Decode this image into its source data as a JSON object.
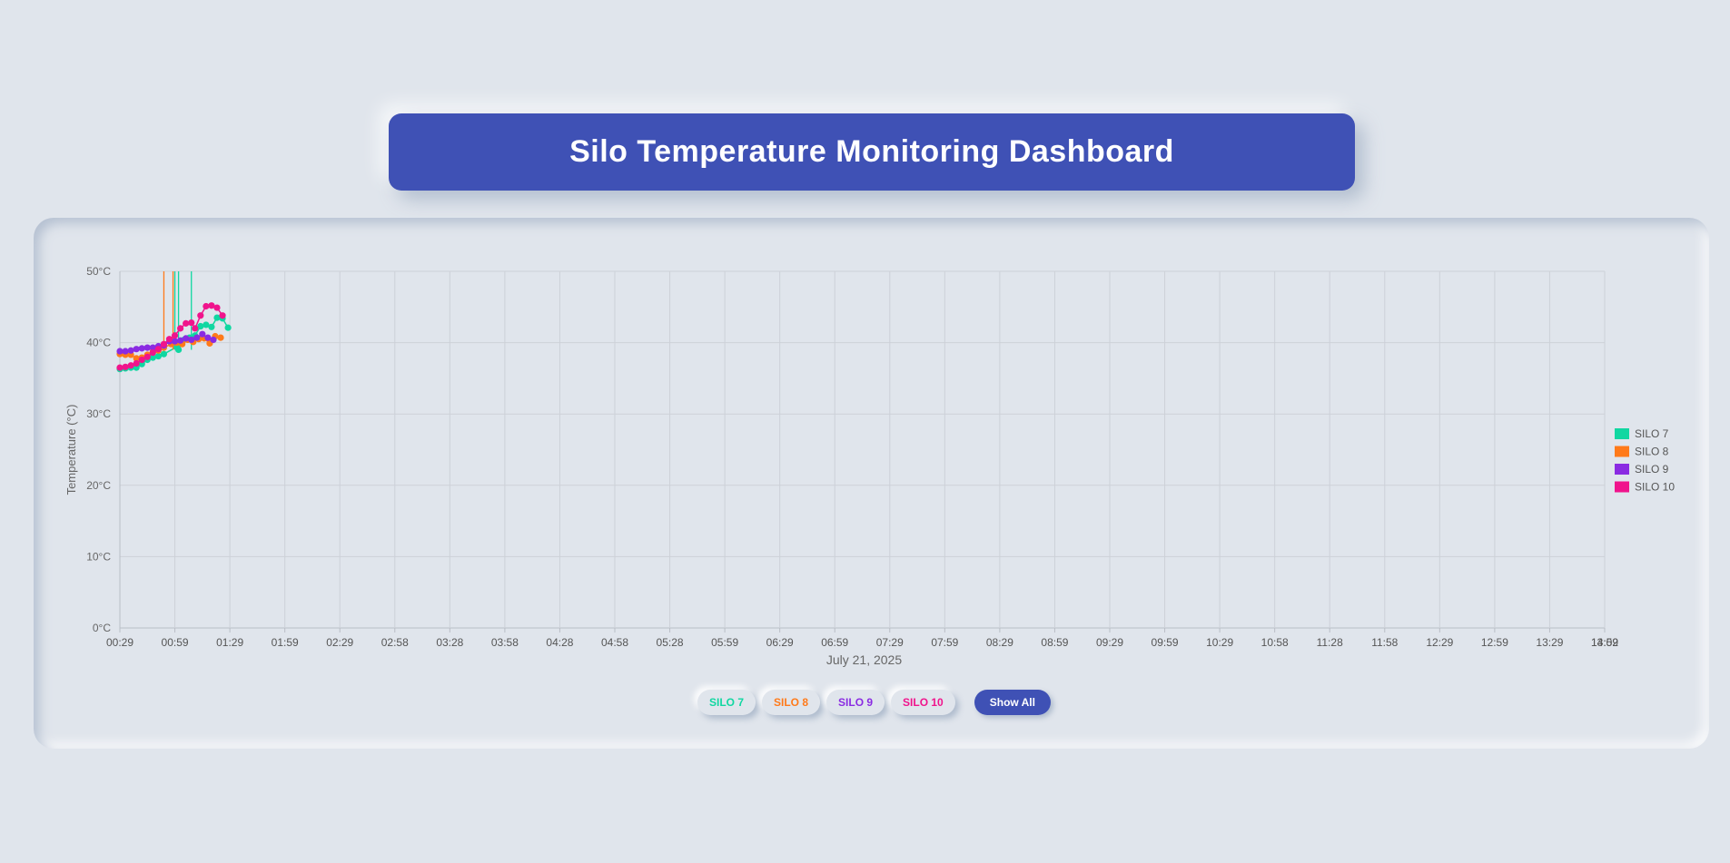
{
  "title": "Silo Temperature Monitoring Dashboard",
  "chart_data": {
    "type": "line",
    "ylabel": "Temperature (°C)",
    "xlabel": "July 21, 2025",
    "ylim": [
      0,
      50
    ],
    "yticks": [
      "0°C",
      "10°C",
      "20°C",
      "30°C",
      "40°C",
      "50°C"
    ],
    "xticks": [
      "00:29",
      "00:59",
      "01:29",
      "01:59",
      "02:29",
      "02:58",
      "03:28",
      "03:58",
      "04:28",
      "04:58",
      "05:28",
      "05:59",
      "06:29",
      "06:59",
      "07:29",
      "07:59",
      "08:29",
      "08:59",
      "09:29",
      "09:59",
      "10:29",
      "10:58",
      "11:28",
      "11:58",
      "12:29",
      "12:59",
      "13:29",
      "13:59",
      "14:02"
    ],
    "grid": true,
    "legend_position": "right",
    "series": [
      {
        "name": "SILO 7",
        "color": "#10d7a1",
        "points": [
          [
            "00:29",
            36.3
          ],
          [
            "00:32",
            36.4
          ],
          [
            "00:35",
            36.5
          ],
          [
            "00:38",
            36.5
          ],
          [
            "00:41",
            37.0
          ],
          [
            "00:44",
            37.6
          ],
          [
            "00:47",
            37.9
          ],
          [
            "00:50",
            38.1
          ],
          [
            "00:53",
            38.4
          ],
          [
            "01:00",
            39.4
          ],
          [
            "01:01",
            39.0
          ],
          [
            "01:04",
            40.4
          ],
          [
            "01:07",
            40.7
          ],
          [
            "01:10",
            41.0
          ],
          [
            "01:13",
            42.3
          ],
          [
            "01:16",
            42.5
          ],
          [
            "01:19",
            42.2
          ],
          [
            "01:22",
            43.5
          ],
          [
            "01:25",
            43.4
          ],
          [
            "01:28",
            42.1
          ]
        ],
        "spikes": [
          "00:59",
          "01:01",
          "01:08"
        ]
      },
      {
        "name": "SILO 8",
        "color": "#ff7a1a",
        "points": [
          [
            "00:29",
            38.4
          ],
          [
            "00:32",
            38.3
          ],
          [
            "00:35",
            38.3
          ],
          [
            "00:38",
            37.8
          ],
          [
            "00:41",
            37.9
          ],
          [
            "00:44",
            38.3
          ],
          [
            "00:47",
            38.8
          ],
          [
            "00:50",
            38.9
          ],
          [
            "00:53",
            39.3
          ],
          [
            "00:57",
            39.8
          ],
          [
            "01:00",
            40.0
          ],
          [
            "01:03",
            39.8
          ],
          [
            "01:06",
            40.4
          ],
          [
            "01:09",
            40.1
          ],
          [
            "01:12",
            40.5
          ],
          [
            "01:15",
            40.6
          ],
          [
            "01:18",
            39.9
          ],
          [
            "01:21",
            40.9
          ],
          [
            "01:24",
            40.7
          ]
        ],
        "spikes": [
          "00:53",
          "00:58"
        ]
      },
      {
        "name": "SILO 9",
        "color": "#8a2be2",
        "points": [
          [
            "00:29",
            38.8
          ],
          [
            "00:32",
            38.8
          ],
          [
            "00:35",
            38.9
          ],
          [
            "00:38",
            39.1
          ],
          [
            "00:41",
            39.2
          ],
          [
            "00:44",
            39.3
          ],
          [
            "00:47",
            39.3
          ],
          [
            "00:50",
            39.5
          ],
          [
            "00:53",
            39.6
          ],
          [
            "00:56",
            40.2
          ],
          [
            "00:59",
            40.2
          ],
          [
            "01:02",
            40.3
          ],
          [
            "01:05",
            40.6
          ],
          [
            "01:08",
            40.4
          ],
          [
            "01:11",
            40.7
          ],
          [
            "01:14",
            41.2
          ],
          [
            "01:17",
            40.7
          ],
          [
            "01:20",
            40.4
          ]
        ]
      },
      {
        "name": "SILO 10",
        "color": "#f0148c",
        "points": [
          [
            "00:29",
            36.5
          ],
          [
            "00:32",
            36.6
          ],
          [
            "00:35",
            36.8
          ],
          [
            "00:38",
            37.1
          ],
          [
            "00:41",
            37.6
          ],
          [
            "00:44",
            38.0
          ],
          [
            "00:47",
            38.6
          ],
          [
            "00:50",
            39.1
          ],
          [
            "00:53",
            39.8
          ],
          [
            "00:56",
            40.5
          ],
          [
            "00:59",
            41.0
          ],
          [
            "01:02",
            42.0
          ],
          [
            "01:05",
            42.7
          ],
          [
            "01:08",
            42.8
          ],
          [
            "01:10",
            42.0
          ],
          [
            "01:13",
            43.8
          ],
          [
            "01:16",
            45.1
          ],
          [
            "01:19",
            45.2
          ],
          [
            "01:22",
            44.9
          ],
          [
            "01:25",
            43.8
          ]
        ]
      }
    ]
  },
  "controls": {
    "buttons": [
      {
        "label": "SILO 7",
        "color": "#10d7a1"
      },
      {
        "label": "SILO 8",
        "color": "#ff7a1a"
      },
      {
        "label": "SILO 9",
        "color": "#8a2be2"
      },
      {
        "label": "SILO 10",
        "color": "#f0148c"
      }
    ],
    "show_all": "Show All"
  }
}
